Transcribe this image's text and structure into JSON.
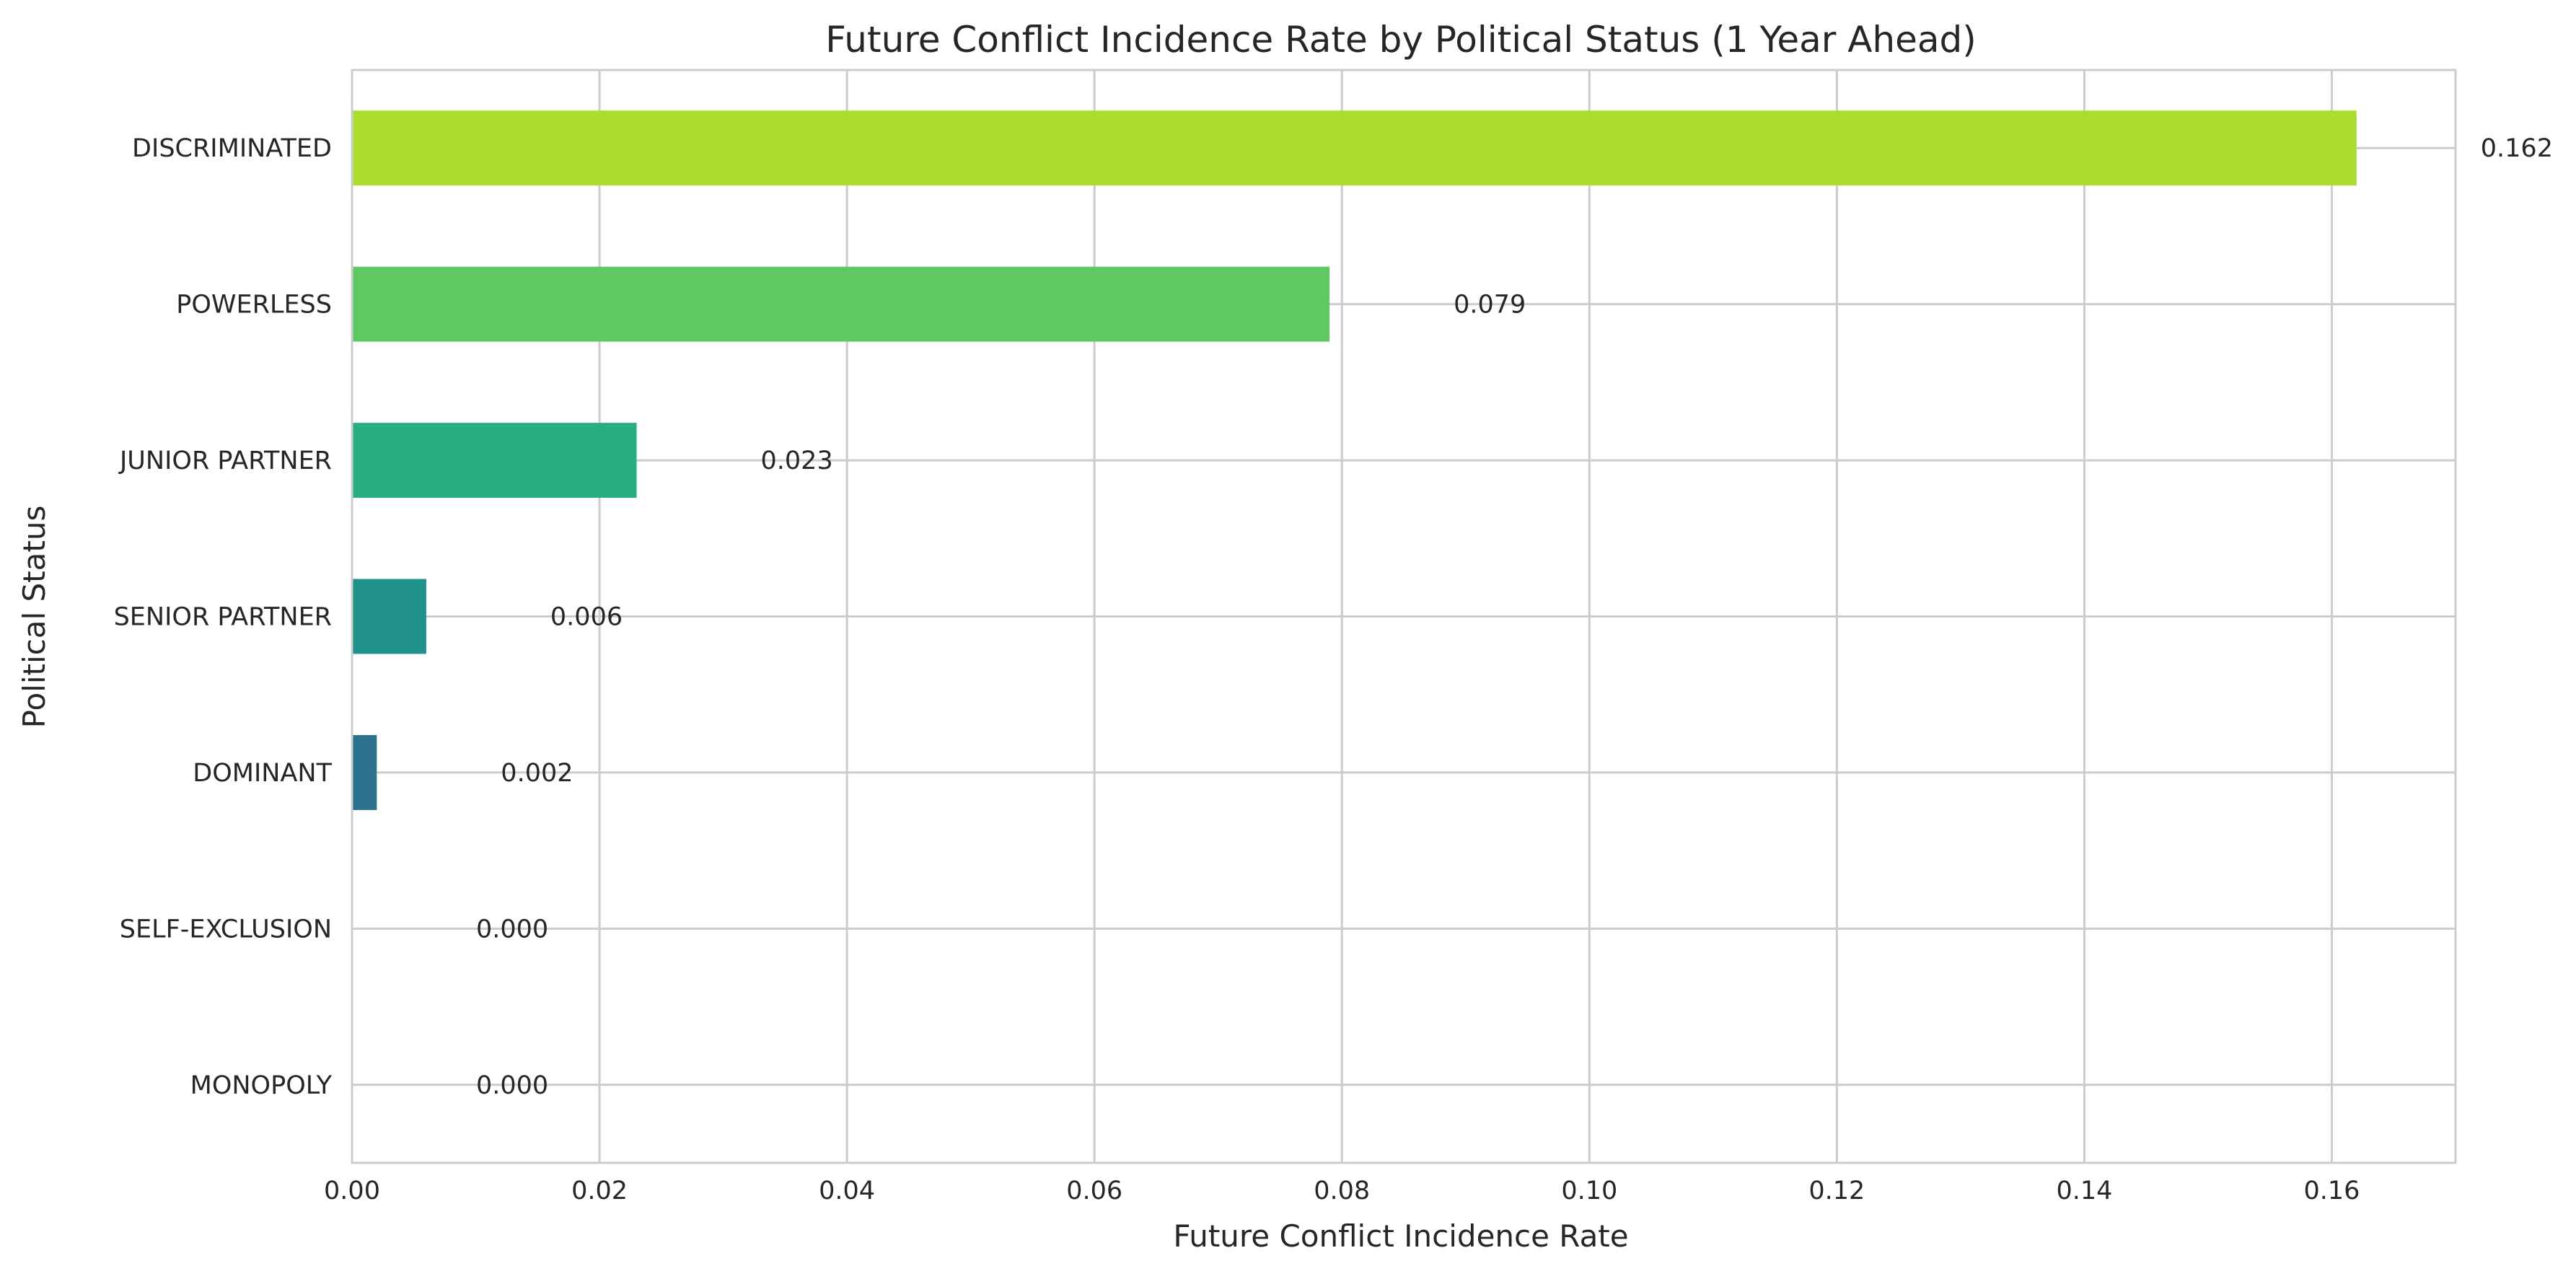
{
  "chart_data": {
    "type": "bar",
    "orientation": "horizontal",
    "title": "Future Conflict Incidence Rate by Political Status (1 Year Ahead)",
    "xlabel": "Future Conflict Incidence Rate",
    "ylabel": "Political Status",
    "categories": [
      "DISCRIMINATED",
      "POWERLESS",
      "JUNIOR PARTNER",
      "SENIOR PARTNER",
      "DOMINANT",
      "SELF-EXCLUSION",
      "MONOPOLY"
    ],
    "values": [
      0.162,
      0.079,
      0.023,
      0.006,
      0.002,
      0.0,
      0.0
    ],
    "value_labels": [
      "0.162",
      "0.079",
      "0.023",
      "0.006",
      "0.002",
      "0.000",
      "0.000"
    ],
    "colors": [
      "#addc30",
      "#5ec962",
      "#28ae80",
      "#21918c",
      "#2c728e",
      "#3b528b",
      "#472d7b"
    ],
    "xlim": [
      0,
      0.17
    ],
    "xticks": [
      0,
      0.02,
      0.04,
      0.06,
      0.08,
      0.1,
      0.12,
      0.14,
      0.16
    ],
    "xtick_labels": [
      "0.00",
      "0.02",
      "0.04",
      "0.06",
      "0.08",
      "0.10",
      "0.12",
      "0.14",
      "0.16"
    ],
    "grid": true,
    "legend": "none"
  }
}
